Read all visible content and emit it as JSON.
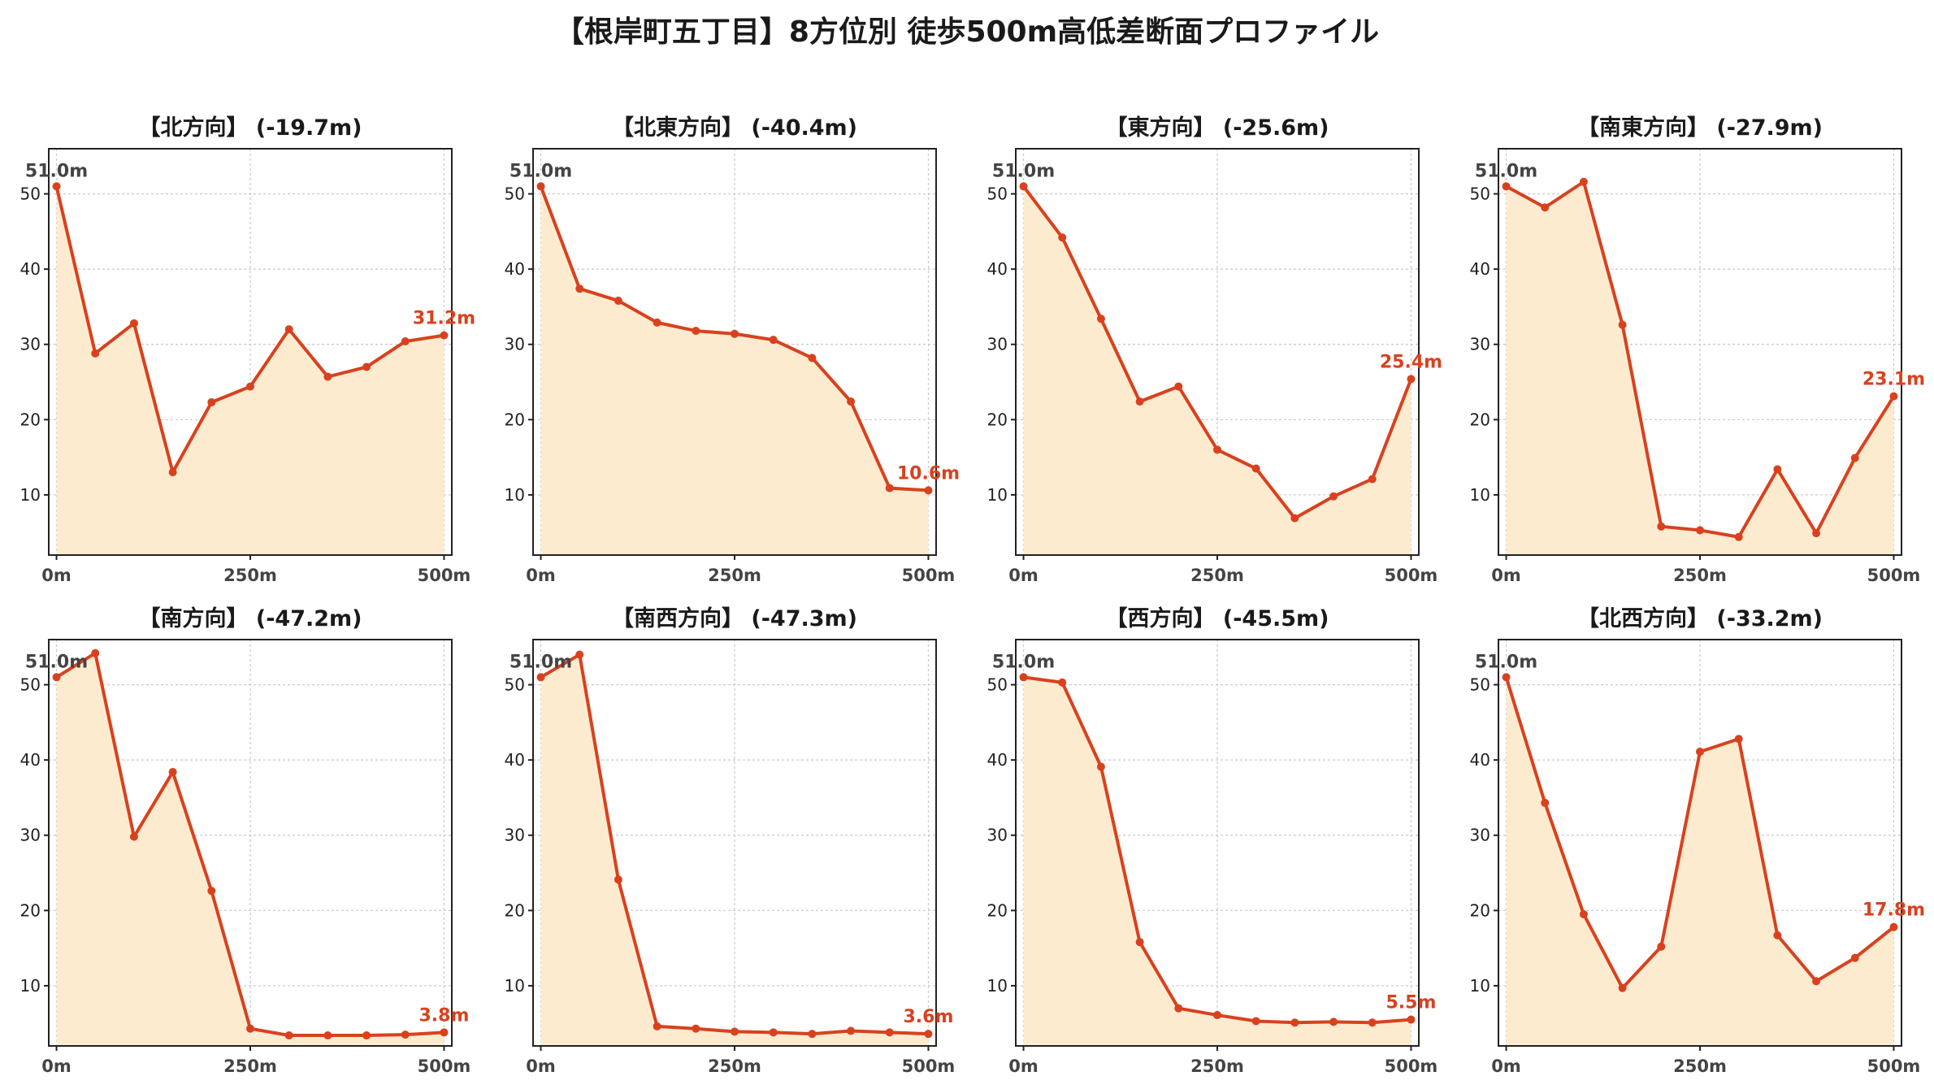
{
  "title": "【根岸町五丁目】8方位別 徒歩500m高低差断面プロファイル",
  "colors": {
    "line": "#d9411e",
    "fill": "#fdebd0",
    "grid": "#c8c8c8",
    "start_label": "#444444",
    "end_label": "#d9411e"
  },
  "chart_data": [
    {
      "type": "area",
      "title": "【北方向】 (-19.7m)",
      "x": [
        0,
        50,
        100,
        150,
        200,
        250,
        300,
        350,
        400,
        450,
        500
      ],
      "values": [
        51.0,
        28.8,
        32.8,
        13.0,
        22.3,
        24.4,
        32.0,
        25.7,
        27.0,
        30.4,
        31.2
      ],
      "xticks": [
        "0m",
        "250m",
        "500m"
      ],
      "yticks": [
        10,
        20,
        30,
        40,
        50
      ],
      "ylim": [
        2,
        56
      ],
      "xlim": [
        -10,
        510
      ],
      "start_label": "51.0m",
      "end_label": "31.2m",
      "grid": true
    },
    {
      "type": "area",
      "title": "【北東方向】 (-40.4m)",
      "x": [
        0,
        50,
        100,
        150,
        200,
        250,
        300,
        350,
        400,
        450,
        500
      ],
      "values": [
        51.0,
        37.4,
        35.8,
        32.9,
        31.8,
        31.4,
        30.6,
        28.2,
        22.4,
        10.9,
        10.6
      ],
      "xticks": [
        "0m",
        "250m",
        "500m"
      ],
      "yticks": [
        10,
        20,
        30,
        40,
        50
      ],
      "ylim": [
        2,
        56
      ],
      "xlim": [
        -10,
        510
      ],
      "start_label": "51.0m",
      "end_label": "10.6m",
      "grid": true
    },
    {
      "type": "area",
      "title": "【東方向】 (-25.6m)",
      "x": [
        0,
        50,
        100,
        150,
        200,
        250,
        300,
        350,
        400,
        450,
        500
      ],
      "values": [
        51.0,
        44.2,
        33.4,
        22.4,
        24.4,
        16.0,
        13.5,
        6.9,
        9.8,
        12.1,
        25.4
      ],
      "xticks": [
        "0m",
        "250m",
        "500m"
      ],
      "yticks": [
        10,
        20,
        30,
        40,
        50
      ],
      "ylim": [
        2,
        56
      ],
      "xlim": [
        -10,
        510
      ],
      "start_label": "51.0m",
      "end_label": "25.4m",
      "grid": true
    },
    {
      "type": "area",
      "title": "【南東方向】 (-27.9m)",
      "x": [
        0,
        50,
        100,
        150,
        200,
        250,
        300,
        350,
        400,
        450,
        500
      ],
      "values": [
        51.0,
        48.2,
        51.6,
        32.6,
        5.8,
        5.3,
        4.4,
        13.4,
        4.9,
        14.9,
        23.1
      ],
      "xticks": [
        "0m",
        "250m",
        "500m"
      ],
      "yticks": [
        10,
        20,
        30,
        40,
        50
      ],
      "ylim": [
        2,
        56
      ],
      "xlim": [
        -10,
        510
      ],
      "start_label": "51.0m",
      "end_label": "23.1m",
      "grid": true
    },
    {
      "type": "area",
      "title": "【南方向】 (-47.2m)",
      "x": [
        0,
        50,
        100,
        150,
        200,
        250,
        300,
        350,
        400,
        450,
        500
      ],
      "values": [
        51.0,
        54.2,
        29.8,
        38.4,
        22.6,
        4.3,
        3.4,
        3.4,
        3.4,
        3.5,
        3.8
      ],
      "xticks": [
        "0m",
        "250m",
        "500m"
      ],
      "yticks": [
        10,
        20,
        30,
        40,
        50
      ],
      "ylim": [
        2,
        56
      ],
      "xlim": [
        -10,
        510
      ],
      "start_label": "51.0m",
      "end_label": "3.8m",
      "grid": true
    },
    {
      "type": "area",
      "title": "【南西方向】 (-47.3m)",
      "x": [
        0,
        50,
        100,
        150,
        200,
        250,
        300,
        350,
        400,
        450,
        500
      ],
      "values": [
        51.0,
        54.0,
        24.1,
        4.6,
        4.3,
        3.9,
        3.8,
        3.6,
        4.0,
        3.8,
        3.6
      ],
      "xticks": [
        "0m",
        "250m",
        "500m"
      ],
      "yticks": [
        10,
        20,
        30,
        40,
        50
      ],
      "ylim": [
        2,
        56
      ],
      "xlim": [
        -10,
        510
      ],
      "start_label": "51.0m",
      "end_label": "3.6m",
      "grid": true
    },
    {
      "type": "area",
      "title": "【西方向】 (-45.5m)",
      "x": [
        0,
        50,
        100,
        150,
        200,
        250,
        300,
        350,
        400,
        450,
        500
      ],
      "values": [
        51.0,
        50.3,
        39.1,
        15.8,
        7.0,
        6.1,
        5.3,
        5.1,
        5.2,
        5.1,
        5.5
      ],
      "xticks": [
        "0m",
        "250m",
        "500m"
      ],
      "yticks": [
        10,
        20,
        30,
        40,
        50
      ],
      "ylim": [
        2,
        56
      ],
      "xlim": [
        -10,
        510
      ],
      "start_label": "51.0m",
      "end_label": "5.5m",
      "grid": true
    },
    {
      "type": "area",
      "title": "【北西方向】 (-33.2m)",
      "x": [
        0,
        50,
        100,
        150,
        200,
        250,
        300,
        350,
        400,
        450,
        500
      ],
      "values": [
        51.0,
        34.3,
        19.5,
        9.7,
        15.2,
        41.1,
        42.8,
        16.7,
        10.6,
        13.7,
        17.8
      ],
      "xticks": [
        "0m",
        "250m",
        "500m"
      ],
      "yticks": [
        10,
        20,
        30,
        40,
        50
      ],
      "ylim": [
        2,
        56
      ],
      "xlim": [
        -10,
        510
      ],
      "start_label": "51.0m",
      "end_label": "17.8m",
      "grid": true
    }
  ]
}
